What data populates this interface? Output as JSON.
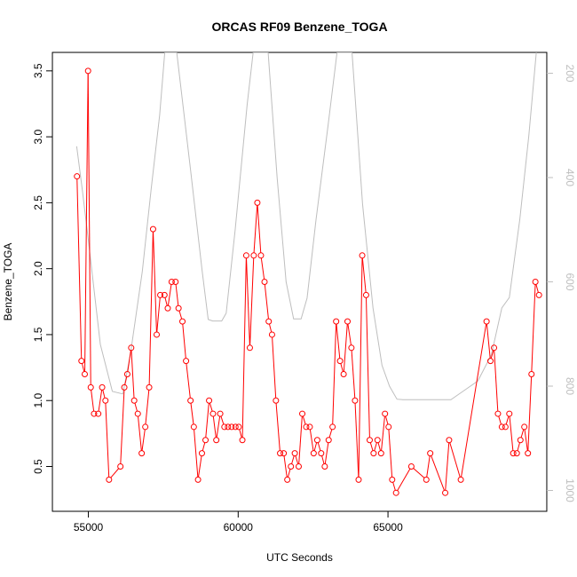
{
  "chart_data": {
    "type": "line",
    "title": "ORCAS RF09 Benzene_TOGA",
    "xlabel": "UTC Seconds",
    "ylabel": "Benzene_TOGA",
    "xlim": [
      53800,
      70300
    ],
    "ylim": [
      0.16,
      3.64
    ],
    "y2lim": [
      1040,
      160
    ],
    "x_ticks": [
      55000,
      60000,
      65000
    ],
    "x_tick_labels": [
      "55000",
      "60000",
      "65000"
    ],
    "y_ticks": [
      0.5,
      1.0,
      1.5,
      2.0,
      2.5,
      3.0,
      3.5
    ],
    "y_tick_labels": [
      "0.5",
      "1.0",
      "1.5",
      "2.0",
      "2.5",
      "3.0",
      "3.5"
    ],
    "y2_ticks": [
      200,
      400,
      600,
      800,
      1000
    ],
    "y2_tick_labels": [
      "200",
      "400",
      "600",
      "800",
      "1000"
    ],
    "grid": false,
    "series": [
      {
        "color": "#ff0000",
        "marker": "open-circle",
        "points": [
          [
            54620,
            2.7
          ],
          [
            54770,
            1.3
          ],
          [
            54880,
            1.2
          ],
          [
            54990,
            3.5
          ],
          [
            55080,
            1.1
          ],
          [
            55190,
            0.9
          ],
          [
            55330,
            0.9
          ],
          [
            55460,
            1.1
          ],
          [
            55570,
            1.0
          ],
          [
            55690,
            0.4
          ],
          [
            56070,
            0.5
          ],
          [
            56200,
            1.1
          ],
          [
            56300,
            1.2
          ],
          [
            56430,
            1.4
          ],
          [
            56530,
            1.0
          ],
          [
            56650,
            0.9
          ],
          [
            56780,
            0.6
          ],
          [
            56900,
            0.8
          ],
          [
            57030,
            1.1
          ],
          [
            57160,
            2.3
          ],
          [
            57280,
            1.5
          ],
          [
            57400,
            1.8
          ],
          [
            57540,
            1.8
          ],
          [
            57650,
            1.7
          ],
          [
            57780,
            1.9
          ],
          [
            57910,
            1.9
          ],
          [
            58010,
            1.7
          ],
          [
            58140,
            1.6
          ],
          [
            58260,
            1.3
          ],
          [
            58410,
            1.0
          ],
          [
            58520,
            0.8
          ],
          [
            58660,
            0.4
          ],
          [
            58790,
            0.6
          ],
          [
            58910,
            0.7
          ],
          [
            59030,
            1.0
          ],
          [
            59160,
            0.9
          ],
          [
            59270,
            0.7
          ],
          [
            59400,
            0.9
          ],
          [
            59540,
            0.8
          ],
          [
            59660,
            0.8
          ],
          [
            59780,
            0.8
          ],
          [
            59910,
            0.8
          ],
          [
            60020,
            0.8
          ],
          [
            60140,
            0.7
          ],
          [
            60270,
            2.1
          ],
          [
            60390,
            1.4
          ],
          [
            60520,
            2.1
          ],
          [
            60640,
            2.5
          ],
          [
            60760,
            2.1
          ],
          [
            60880,
            1.9
          ],
          [
            61020,
            1.6
          ],
          [
            61130,
            1.5
          ],
          [
            61260,
            1.0
          ],
          [
            61400,
            0.6
          ],
          [
            61520,
            0.6
          ],
          [
            61640,
            0.4
          ],
          [
            61760,
            0.5
          ],
          [
            61890,
            0.6
          ],
          [
            62020,
            0.5
          ],
          [
            62140,
            0.9
          ],
          [
            62270,
            0.8
          ],
          [
            62390,
            0.8
          ],
          [
            62520,
            0.6
          ],
          [
            62640,
            0.7
          ],
          [
            62770,
            0.6
          ],
          [
            62890,
            0.5
          ],
          [
            63020,
            0.7
          ],
          [
            63150,
            0.8
          ],
          [
            63270,
            1.6
          ],
          [
            63400,
            1.3
          ],
          [
            63520,
            1.2
          ],
          [
            63650,
            1.6
          ],
          [
            63780,
            1.4
          ],
          [
            63900,
            1.0
          ],
          [
            64020,
            0.4
          ],
          [
            64140,
            2.1
          ],
          [
            64270,
            1.8
          ],
          [
            64390,
            0.7
          ],
          [
            64520,
            0.6
          ],
          [
            64650,
            0.7
          ],
          [
            64770,
            0.6
          ],
          [
            64900,
            0.9
          ],
          [
            65020,
            0.8
          ],
          [
            65140,
            0.4
          ],
          [
            65270,
            0.3
          ],
          [
            65780,
            0.5
          ],
          [
            66280,
            0.4
          ],
          [
            66410,
            0.6
          ],
          [
            66910,
            0.3
          ],
          [
            67040,
            0.7
          ],
          [
            67430,
            0.4
          ],
          [
            68290,
            1.6
          ],
          [
            68420,
            1.3
          ],
          [
            68540,
            1.4
          ],
          [
            68670,
            0.9
          ],
          [
            68800,
            0.8
          ],
          [
            68920,
            0.8
          ],
          [
            69050,
            0.9
          ],
          [
            69180,
            0.6
          ],
          [
            69300,
            0.6
          ],
          [
            69420,
            0.7
          ],
          [
            69550,
            0.8
          ],
          [
            69670,
            0.6
          ],
          [
            69790,
            1.2
          ],
          [
            69920,
            1.9
          ],
          [
            70040,
            1.8
          ]
        ]
      },
      {
        "color": "#bebebe",
        "axis": "right",
        "points": [
          [
            54610,
            340
          ],
          [
            54790,
            420
          ],
          [
            55000,
            520
          ],
          [
            55200,
            620
          ],
          [
            55400,
            720
          ],
          [
            55800,
            810
          ],
          [
            56150,
            815
          ],
          [
            56400,
            740
          ],
          [
            56800,
            580
          ],
          [
            57100,
            420
          ],
          [
            57380,
            280
          ],
          [
            57550,
            160
          ],
          [
            57950,
            160
          ],
          [
            58400,
            380
          ],
          [
            58800,
            580
          ],
          [
            59000,
            672
          ],
          [
            59150,
            675
          ],
          [
            59450,
            675
          ],
          [
            59600,
            660
          ],
          [
            59900,
            500
          ],
          [
            60300,
            260
          ],
          [
            60500,
            160
          ],
          [
            61000,
            160
          ],
          [
            61300,
            400
          ],
          [
            61600,
            600
          ],
          [
            61850,
            671
          ],
          [
            62100,
            671
          ],
          [
            62300,
            631
          ],
          [
            62600,
            480
          ],
          [
            63000,
            300
          ],
          [
            63300,
            160
          ],
          [
            63800,
            160
          ],
          [
            64150,
            450
          ],
          [
            64500,
            650
          ],
          [
            64800,
            760
          ],
          [
            65050,
            800
          ],
          [
            65300,
            825
          ],
          [
            65500,
            826
          ],
          [
            66500,
            826
          ],
          [
            67100,
            826
          ],
          [
            67500,
            810
          ],
          [
            68000,
            790
          ],
          [
            68450,
            740
          ],
          [
            68800,
            650
          ],
          [
            69050,
            630
          ],
          [
            69400,
            480
          ],
          [
            69700,
            320
          ],
          [
            69950,
            160
          ]
        ]
      }
    ]
  }
}
